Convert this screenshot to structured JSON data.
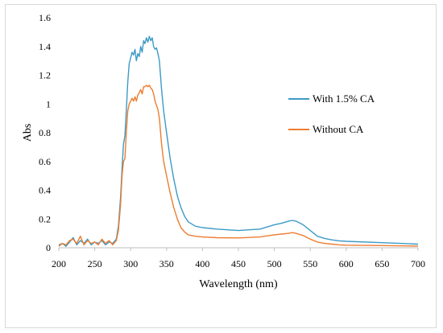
{
  "chart_data": {
    "type": "line",
    "title": "",
    "xlabel": "Wavelength (nm)",
    "ylabel": "Abs",
    "xlim": [
      200,
      700
    ],
    "ylim": [
      0,
      1.6
    ],
    "xticks": [
      200,
      250,
      300,
      350,
      400,
      450,
      500,
      550,
      600,
      650,
      700
    ],
    "yticks": [
      0,
      0.2,
      0.4,
      0.6,
      0.8,
      1,
      1.2,
      1.4,
      1.6
    ],
    "grid": false,
    "legend_position": "right",
    "series": [
      {
        "name": "With 1.5% CA",
        "color": "#3d9ac6",
        "x": [
          200,
          205,
          210,
          215,
          220,
          225,
          230,
          235,
          240,
          245,
          250,
          255,
          260,
          265,
          270,
          275,
          280,
          283,
          286,
          288,
          290,
          292,
          294,
          296,
          298,
          300,
          302,
          304,
          306,
          308,
          310,
          312,
          314,
          316,
          318,
          320,
          322,
          324,
          326,
          328,
          330,
          332,
          334,
          336,
          338,
          340,
          343,
          346,
          350,
          355,
          360,
          365,
          370,
          375,
          380,
          390,
          400,
          420,
          450,
          480,
          500,
          510,
          520,
          525,
          530,
          540,
          550,
          560,
          570,
          580,
          590,
          600,
          650,
          700
        ],
        "y": [
          0.02,
          0.03,
          0.01,
          0.04,
          0.07,
          0.02,
          0.05,
          0.03,
          0.06,
          0.02,
          0.04,
          0.03,
          0.05,
          0.02,
          0.04,
          0.03,
          0.06,
          0.15,
          0.35,
          0.55,
          0.72,
          0.78,
          0.95,
          1.15,
          1.28,
          1.32,
          1.36,
          1.34,
          1.38,
          1.3,
          1.35,
          1.33,
          1.4,
          1.36,
          1.44,
          1.42,
          1.46,
          1.43,
          1.47,
          1.44,
          1.46,
          1.4,
          1.38,
          1.39,
          1.35,
          1.3,
          1.1,
          0.95,
          0.8,
          0.62,
          0.48,
          0.36,
          0.28,
          0.22,
          0.18,
          0.15,
          0.14,
          0.13,
          0.12,
          0.13,
          0.16,
          0.17,
          0.185,
          0.19,
          0.185,
          0.16,
          0.12,
          0.08,
          0.065,
          0.055,
          0.048,
          0.045,
          0.035,
          0.025
        ]
      },
      {
        "name": "Without CA",
        "color": "#ed7d31",
        "x": [
          200,
          205,
          210,
          215,
          220,
          225,
          230,
          235,
          240,
          245,
          250,
          255,
          260,
          265,
          270,
          275,
          280,
          283,
          286,
          288,
          290,
          292,
          294,
          296,
          298,
          300,
          302,
          304,
          306,
          308,
          310,
          312,
          314,
          316,
          318,
          320,
          322,
          324,
          326,
          328,
          330,
          332,
          334,
          336,
          338,
          340,
          343,
          346,
          350,
          355,
          360,
          365,
          370,
          375,
          380,
          390,
          400,
          420,
          450,
          480,
          500,
          510,
          520,
          525,
          530,
          540,
          550,
          560,
          570,
          580,
          590,
          600,
          650,
          700
        ],
        "y": [
          0.01,
          0.03,
          0.02,
          0.05,
          0.06,
          0.03,
          0.08,
          0.02,
          0.05,
          0.03,
          0.04,
          0.02,
          0.06,
          0.03,
          0.05,
          0.02,
          0.05,
          0.12,
          0.3,
          0.5,
          0.6,
          0.62,
          0.8,
          0.95,
          1.0,
          1.02,
          1.04,
          1.02,
          1.05,
          1.02,
          1.06,
          1.08,
          1.1,
          1.07,
          1.12,
          1.12,
          1.13,
          1.12,
          1.13,
          1.11,
          1.1,
          1.07,
          1.02,
          0.99,
          0.96,
          0.9,
          0.72,
          0.6,
          0.5,
          0.38,
          0.28,
          0.2,
          0.14,
          0.11,
          0.09,
          0.08,
          0.075,
          0.07,
          0.068,
          0.075,
          0.09,
          0.095,
          0.1,
          0.105,
          0.1,
          0.085,
          0.06,
          0.04,
          0.03,
          0.025,
          0.02,
          0.018,
          0.015,
          0.012
        ]
      }
    ]
  }
}
